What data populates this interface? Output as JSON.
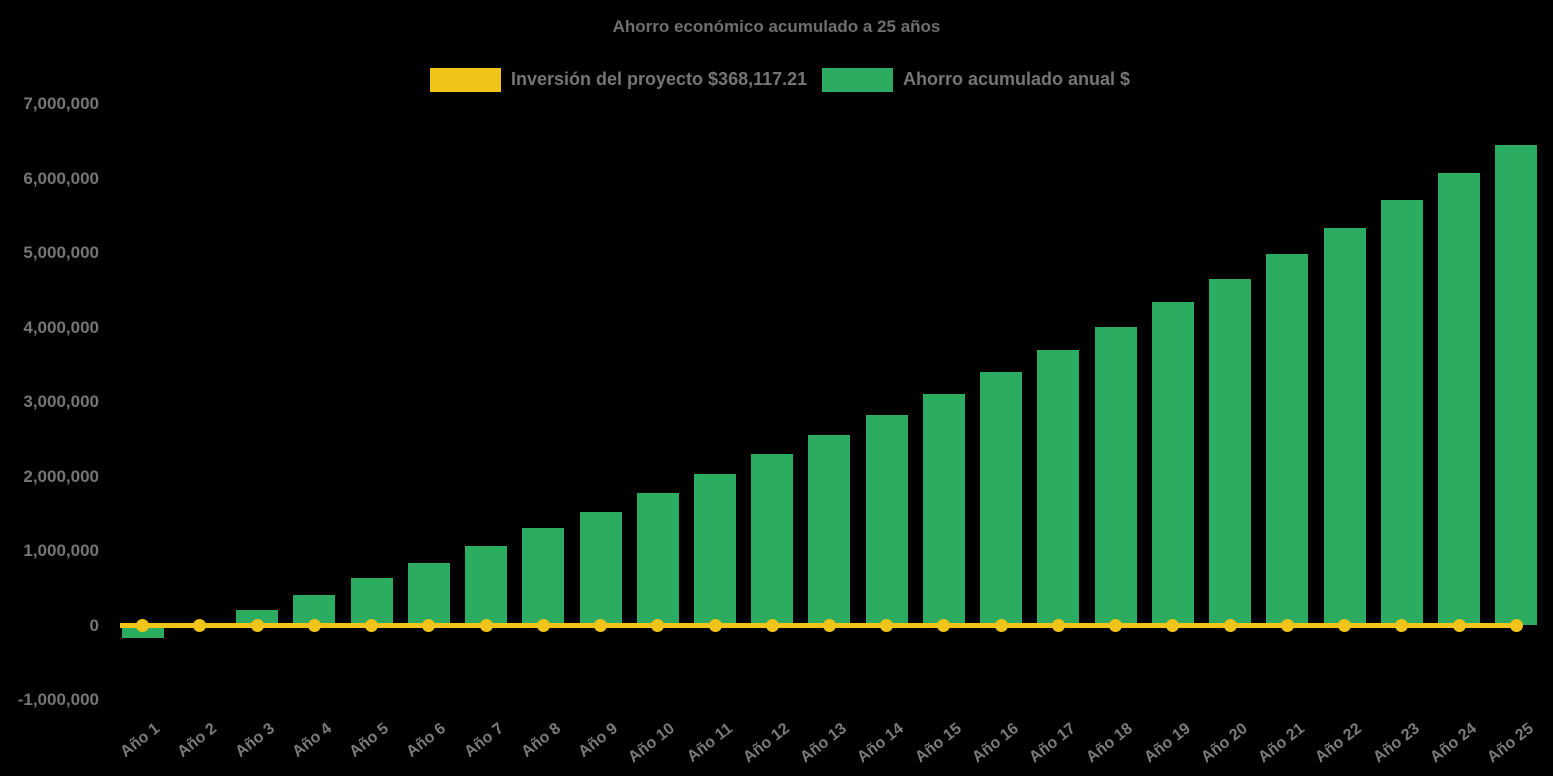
{
  "title": "Ahorro económico acumulado a 25 años",
  "legend": [
    {
      "label": "Inversión del proyecto $368,117.21",
      "color": "#F0C419",
      "type": "line"
    },
    {
      "label": "Ahorro acumulado anual $",
      "color": "#2BAC61",
      "type": "bar"
    }
  ],
  "colors": {
    "background": "#000000",
    "bar": "#2BAC61",
    "line": "#F0C419",
    "text": "#757575",
    "title": "#6F6F6F"
  },
  "chart_data": {
    "type": "bar",
    "title": "Ahorro económico acumulado a 25 años",
    "xlabel": "",
    "ylabel": "",
    "ylim": [
      -1000000,
      7000000
    ],
    "grid": false,
    "legend_position": "top",
    "yticks": [
      "7,000,000",
      "6,000,000",
      "5,000,000",
      "4,000,000",
      "3,000,000",
      "2,000,000",
      "1,000,000",
      "0",
      "-1,000,000"
    ],
    "categories": [
      "Año 1",
      "Año 2",
      "Año 3",
      "Año 4",
      "Año 5",
      "Año 6",
      "Año 7",
      "Año 8",
      "Año 9",
      "Año 10",
      "Año 11",
      "Año 12",
      "Año 13",
      "Año 14",
      "Año 15",
      "Año 16",
      "Año 17",
      "Año 18",
      "Año 19",
      "Año 20",
      "Año 21",
      "Año 22",
      "Año 23",
      "Año 24",
      "Año 25"
    ],
    "series": [
      {
        "name": "Ahorro acumulado anual $",
        "type": "bar",
        "color": "#2BAC61",
        "values": [
          -170000,
          30000,
          210000,
          410000,
          640000,
          845000,
          1070000,
          1310000,
          1530000,
          1780000,
          2030000,
          2300000,
          2560000,
          2830000,
          3110000,
          3400000,
          3700000,
          4010000,
          4340000,
          4650000,
          4990000,
          5340000,
          5710000,
          6070000,
          6450000
        ]
      },
      {
        "name": "Inversión del proyecto $368,117.21",
        "type": "line",
        "color": "#F0C419",
        "markers": true,
        "investment_value": "368,117.21",
        "plotted_level": 0
      }
    ]
  }
}
